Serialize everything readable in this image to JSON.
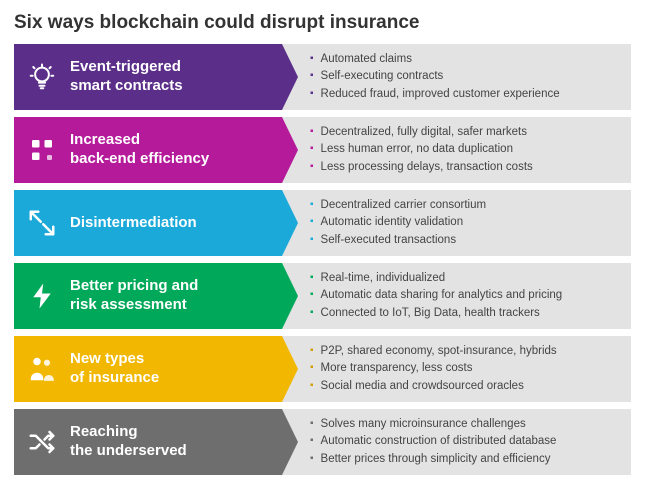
{
  "title": "Six ways blockchain could disrupt insurance",
  "background_color": "#ffffff",
  "bullets_background": "#e3e3e3",
  "bullet_text_color": "#444444",
  "rows": [
    {
      "icon": "bulb",
      "label": "Event-triggered\nsmart contracts",
      "color": "#5b2e8a",
      "bullet_color": "#5b2e8a",
      "bullets": [
        "Automated claims",
        "Self-executing contracts",
        "Reduced fraud, improved customer experience"
      ]
    },
    {
      "icon": "grid",
      "label": "Increased\nback-end efficiency",
      "color": "#b51a9b",
      "bullet_color": "#b51a9b",
      "bullets": [
        "Decentralized, fully digital, safer markets",
        "Less human error, no data duplication",
        "Less processing delays, transaction costs"
      ]
    },
    {
      "icon": "shrink",
      "label": "Disintermediation",
      "color": "#1aa9d8",
      "bullet_color": "#1aa9d8",
      "bullets": [
        "Decentralized carrier consortium",
        "Automatic identity validation",
        "Self-executed transactions"
      ]
    },
    {
      "icon": "bolt",
      "label": "Better pricing and\nrisk assessment",
      "color": "#00a859",
      "bullet_color": "#00a859",
      "bullets": [
        "Real-time, individualized",
        "Automatic data sharing for analytics and pricing",
        "Connected to IoT, Big Data, health trackers"
      ]
    },
    {
      "icon": "people",
      "label": "New types\nof insurance",
      "color": "#f2b700",
      "bullet_color": "#d19e00",
      "bullets": [
        "P2P, shared economy, spot-insurance, hybrids",
        "More transparency, less costs",
        "Social media and crowdsourced oracles"
      ]
    },
    {
      "icon": "shuffle",
      "label": "Reaching\nthe underserved",
      "color": "#6e6e6e",
      "bullet_color": "#6e6e6e",
      "bullets": [
        "Solves many microinsurance challenges",
        "Automatic construction of distributed database",
        "Better prices through simplicity and efficiency"
      ]
    }
  ]
}
